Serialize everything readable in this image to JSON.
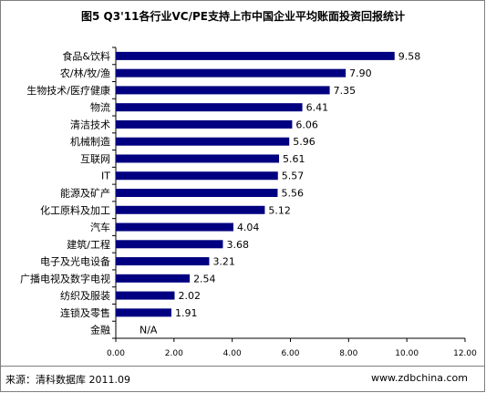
{
  "title": "图5  Q3'11各行业VC/PE支持上市中国企业平均账面投资回报统计",
  "footer": {
    "source": "来源：清科数据库 2011.09",
    "website": "www.zdbchina.com"
  },
  "chart_data": {
    "type": "bar",
    "orientation": "horizontal",
    "title": "图5  Q3'11各行业VC/PE支持上市中国企业平均账面投资回报统计",
    "xlabel": "",
    "ylabel": "",
    "xlim": [
      0,
      12
    ],
    "xticks": [
      "0.00",
      "2.00",
      "4.00",
      "6.00",
      "8.00",
      "10.00",
      "12.00"
    ],
    "grid": false,
    "bar_color": "#000080",
    "categories": [
      "食品&饮料",
      "农/林/牧/渔",
      "生物技术/医疗健康",
      "物流",
      "清洁技术",
      "机械制造",
      "互联网",
      "IT",
      "能源及矿产",
      "化工原料及加工",
      "汽车",
      "建筑/工程",
      "电子及光电设备",
      "广播电视及数字电视",
      "纺织及服装",
      "连锁及零售",
      "金融"
    ],
    "values": [
      9.58,
      7.9,
      7.35,
      6.41,
      6.06,
      5.96,
      5.61,
      5.57,
      5.56,
      5.12,
      4.04,
      3.68,
      3.21,
      2.54,
      2.02,
      1.91,
      null
    ],
    "value_labels": [
      "9.58",
      "7.90",
      "7.35",
      "6.41",
      "6.06",
      "5.96",
      "5.61",
      "5.57",
      "5.56",
      "5.12",
      "4.04",
      "3.68",
      "3.21",
      "2.54",
      "2.02",
      "1.91",
      "N/A"
    ]
  }
}
